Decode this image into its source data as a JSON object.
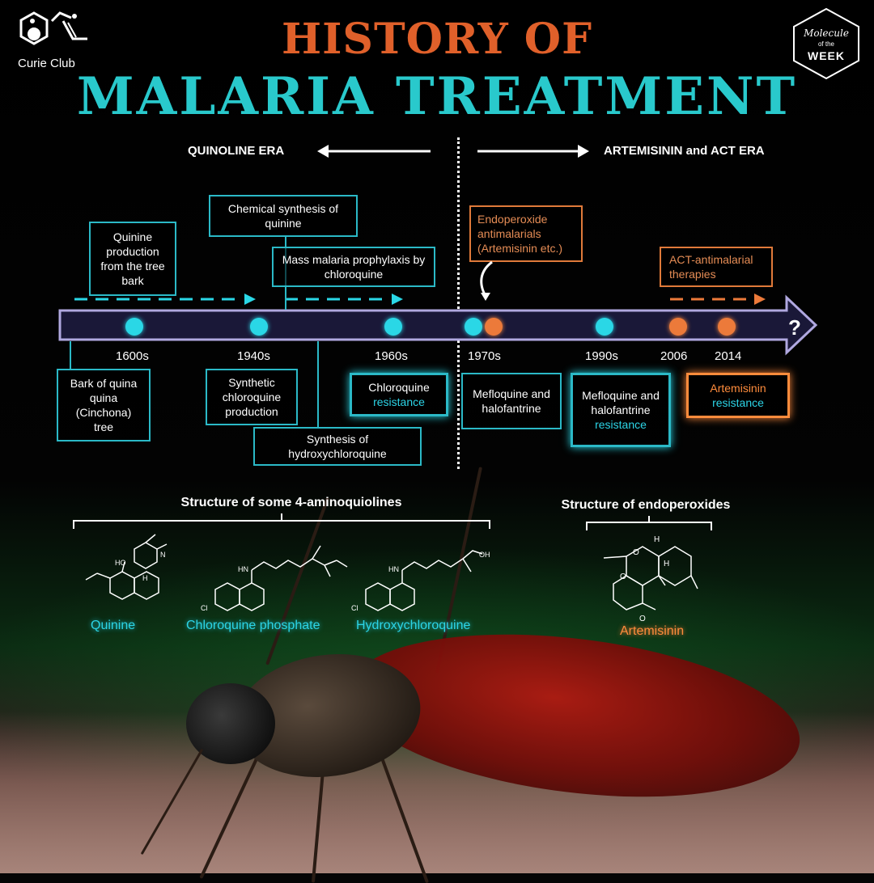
{
  "logo": {
    "name": "Curie Club"
  },
  "badge": {
    "line1": "Molecule",
    "line2": "of the",
    "line3": "WEEK"
  },
  "title": {
    "line1": "HISTORY OF",
    "line2": "MALARIA TREATMENT"
  },
  "eras": {
    "left": "QUINOLINE ERA",
    "right": "ARTEMISININ and ACT ERA"
  },
  "timeline": {
    "end_marker": "?",
    "years": [
      "1600s",
      "1940s",
      "1960s",
      "1970s",
      "1990s",
      "2006",
      "2014"
    ]
  },
  "top_boxes": {
    "quinine_production": "Quinine production from the tree bark",
    "chemical_synthesis": "Chemical synthesis of quinine",
    "mass_prophylaxis": "Mass malaria prophylaxis by chloroquine",
    "endoperoxide": "Endoperoxide antimalarials (Artemisinin etc.)",
    "act_therapies": "ACT-antimalarial therapies"
  },
  "bottom_boxes": {
    "bark": "Bark of quina quina (Cinchona) tree",
    "synthetic_chloroquine": "Synthetic chloroquine production",
    "hydroxychloroquine_synthesis": "Synthesis of hydroxychloroquine",
    "chloroquine_resistance_a": "Chloroquine",
    "chloroquine_resistance_b": "resistance",
    "mefloquine": "Mefloquine and halofantrine",
    "mefloquine_resistance_a": "Mefloquine and halofantrine",
    "mefloquine_resistance_b": "resistance",
    "artemisinin_resistance_a": "Artemisinin",
    "artemisinin_resistance_b": "resistance"
  },
  "structures": {
    "aminoquinolines_heading": "Structure of some 4-aminoquiolines",
    "endoperoxides_heading": "Structure of endoperoxides",
    "names": [
      "Quinine",
      "Chloroquine phosphate",
      "Hydroxychloroquine",
      "Artemisinin"
    ],
    "atoms": {
      "ho": "HO",
      "h": "H",
      "n": "N",
      "hn": "HN",
      "cl": "Cl",
      "oh": "OH",
      "o": "O"
    }
  },
  "colors": {
    "cyan": "#2ad7e6",
    "orange": "#ec7a3a",
    "title_orange": "#e0602a",
    "title_cyan": "#29c9cc"
  }
}
